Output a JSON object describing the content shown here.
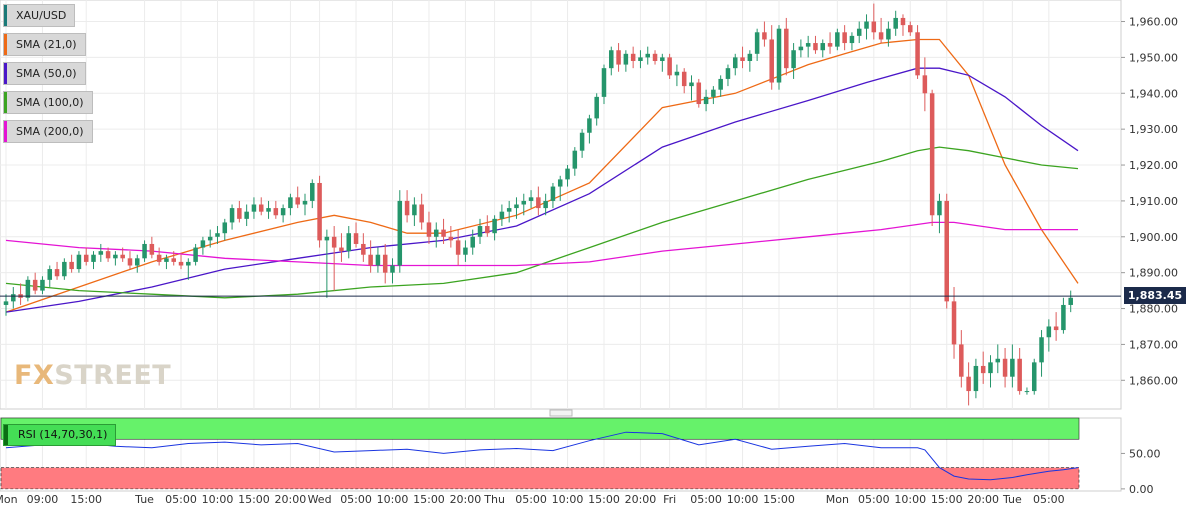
{
  "chart_data": {
    "type": "candlestick",
    "symbol": "XAU/USD",
    "last_price_label": "1,883.45",
    "last_price": 1883.45,
    "ylim": [
      1852,
      1966
    ],
    "y_ticks": [
      "1,960.00",
      "1,950.00",
      "1,940.00",
      "1,930.00",
      "1,920.00",
      "1,910.00",
      "1,900.00",
      "1,890.00",
      "1,880.00",
      "1,870.00",
      "1,860.00"
    ],
    "y_tick_values": [
      1960,
      1950,
      1940,
      1930,
      1920,
      1910,
      1900,
      1890,
      1880,
      1870,
      1860
    ],
    "x_ticks": [
      "Mon",
      "09:00",
      "15:00",
      "Tue",
      "05:00",
      "10:00",
      "15:00",
      "20:00",
      "Wed",
      "05:00",
      "10:00",
      "15:00",
      "20:00",
      "Thu",
      "05:00",
      "10:00",
      "15:00",
      "20:00",
      "Fri",
      "05:00",
      "10:00",
      "15:00",
      "Mon",
      "05:00",
      "10:00",
      "15:00",
      "20:00",
      "Tue",
      "05:00"
    ],
    "x_tick_index": [
      0,
      5,
      11,
      19,
      24,
      29,
      34,
      39,
      43,
      48,
      53,
      58,
      63,
      67,
      72,
      77,
      82,
      87,
      91,
      96,
      101,
      106,
      114,
      119,
      124,
      129,
      134,
      138,
      143
    ],
    "bar_count": 148,
    "ohlc": [
      [
        1881,
        1884,
        1878,
        1882
      ],
      [
        1882,
        1886,
        1880,
        1884
      ],
      [
        1884,
        1887,
        1881,
        1883
      ],
      [
        1883,
        1889,
        1882,
        1888
      ],
      [
        1888,
        1890,
        1884,
        1885
      ],
      [
        1885,
        1889,
        1884,
        1888
      ],
      [
        1888,
        1892,
        1886,
        1891
      ],
      [
        1891,
        1893,
        1888,
        1889
      ],
      [
        1889,
        1894,
        1888,
        1893
      ],
      [
        1893,
        1895,
        1890,
        1891
      ],
      [
        1891,
        1896,
        1890,
        1895
      ],
      [
        1895,
        1897,
        1892,
        1893
      ],
      [
        1893,
        1896,
        1891,
        1895
      ],
      [
        1895,
        1898,
        1893,
        1896
      ],
      [
        1896,
        1897,
        1893,
        1894
      ],
      [
        1894,
        1896,
        1892,
        1895
      ],
      [
        1895,
        1897,
        1893,
        1894
      ],
      [
        1894,
        1896,
        1891,
        1892
      ],
      [
        1892,
        1895,
        1890,
        1894
      ],
      [
        1894,
        1899,
        1893,
        1898
      ],
      [
        1898,
        1900,
        1894,
        1895
      ],
      [
        1895,
        1897,
        1892,
        1893
      ],
      [
        1893,
        1895,
        1891,
        1894
      ],
      [
        1894,
        1896,
        1892,
        1893
      ],
      [
        1893,
        1895,
        1891,
        1892
      ],
      [
        1892,
        1894,
        1888,
        1893
      ],
      [
        1893,
        1898,
        1892,
        1897
      ],
      [
        1897,
        1900,
        1895,
        1899
      ],
      [
        1899,
        1902,
        1897,
        1900
      ],
      [
        1900,
        1903,
        1898,
        1901
      ],
      [
        1901,
        1905,
        1899,
        1904
      ],
      [
        1904,
        1909,
        1902,
        1908
      ],
      [
        1908,
        1910,
        1904,
        1905
      ],
      [
        1905,
        1909,
        1903,
        1907
      ],
      [
        1907,
        1911,
        1905,
        1909
      ],
      [
        1909,
        1911,
        1906,
        1907
      ],
      [
        1907,
        1910,
        1905,
        1908
      ],
      [
        1908,
        1910,
        1905,
        1906
      ],
      [
        1906,
        1909,
        1904,
        1908
      ],
      [
        1908,
        1912,
        1906,
        1911
      ],
      [
        1911,
        1914,
        1908,
        1909
      ],
      [
        1909,
        1912,
        1906,
        1910
      ],
      [
        1910,
        1916,
        1908,
        1915
      ],
      [
        1915,
        1917,
        1897,
        1899
      ],
      [
        1899,
        1902,
        1883,
        1900
      ],
      [
        1900,
        1903,
        1885,
        1897
      ],
      [
        1897,
        1901,
        1893,
        1896
      ],
      [
        1896,
        1903,
        1894,
        1901
      ],
      [
        1901,
        1904,
        1897,
        1898
      ],
      [
        1898,
        1901,
        1893,
        1895
      ],
      [
        1895,
        1899,
        1890,
        1892
      ],
      [
        1892,
        1897,
        1890,
        1895
      ],
      [
        1895,
        1898,
        1887,
        1890
      ],
      [
        1890,
        1894,
        1887,
        1892
      ],
      [
        1892,
        1913,
        1890,
        1910
      ],
      [
        1910,
        1913,
        1904,
        1906
      ],
      [
        1906,
        1911,
        1903,
        1909
      ],
      [
        1909,
        1912,
        1902,
        1904
      ],
      [
        1904,
        1907,
        1898,
        1900
      ],
      [
        1900,
        1904,
        1897,
        1902
      ],
      [
        1902,
        1905,
        1898,
        1900
      ],
      [
        1900,
        1903,
        1897,
        1899
      ],
      [
        1899,
        1902,
        1892,
        1895
      ],
      [
        1895,
        1899,
        1893,
        1897
      ],
      [
        1897,
        1902,
        1895,
        1900
      ],
      [
        1900,
        1905,
        1898,
        1903
      ],
      [
        1903,
        1906,
        1900,
        1901
      ],
      [
        1901,
        1906,
        1899,
        1905
      ],
      [
        1905,
        1909,
        1903,
        1907
      ],
      [
        1907,
        1910,
        1904,
        1908
      ],
      [
        1908,
        1911,
        1905,
        1909
      ],
      [
        1909,
        1912,
        1906,
        1910
      ],
      [
        1910,
        1913,
        1908,
        1911
      ],
      [
        1911,
        1914,
        1906,
        1908
      ],
      [
        1908,
        1912,
        1906,
        1910
      ],
      [
        1910,
        1915,
        1908,
        1914
      ],
      [
        1914,
        1917,
        1910,
        1916
      ],
      [
        1916,
        1920,
        1914,
        1919
      ],
      [
        1919,
        1925,
        1917,
        1924
      ],
      [
        1924,
        1930,
        1922,
        1929
      ],
      [
        1929,
        1934,
        1926,
        1933
      ],
      [
        1933,
        1940,
        1931,
        1939
      ],
      [
        1939,
        1948,
        1937,
        1947
      ],
      [
        1947,
        1953,
        1945,
        1952
      ],
      [
        1952,
        1954,
        1946,
        1948
      ],
      [
        1948,
        1952,
        1946,
        1951
      ],
      [
        1951,
        1953,
        1947,
        1949
      ],
      [
        1949,
        1952,
        1947,
        1950
      ],
      [
        1950,
        1953,
        1948,
        1951
      ],
      [
        1951,
        1952,
        1948,
        1949
      ],
      [
        1949,
        1951,
        1946,
        1950
      ],
      [
        1950,
        1951,
        1944,
        1945
      ],
      [
        1945,
        1948,
        1942,
        1946
      ],
      [
        1946,
        1947,
        1940,
        1942
      ],
      [
        1942,
        1945,
        1938,
        1943
      ],
      [
        1943,
        1944,
        1936,
        1937
      ],
      [
        1937,
        1941,
        1935,
        1939
      ],
      [
        1939,
        1942,
        1937,
        1941
      ],
      [
        1941,
        1945,
        1939,
        1944
      ],
      [
        1944,
        1948,
        1942,
        1947
      ],
      [
        1947,
        1951,
        1945,
        1950
      ],
      [
        1950,
        1953,
        1947,
        1949
      ],
      [
        1949,
        1952,
        1946,
        1951
      ],
      [
        1951,
        1958,
        1949,
        1957
      ],
      [
        1957,
        1960,
        1953,
        1955
      ],
      [
        1955,
        1959,
        1941,
        1943
      ],
      [
        1943,
        1959,
        1941,
        1958
      ],
      [
        1958,
        1961,
        1945,
        1947
      ],
      [
        1947,
        1954,
        1944,
        1952
      ],
      [
        1952,
        1955,
        1950,
        1953
      ],
      [
        1953,
        1956,
        1950,
        1954
      ],
      [
        1954,
        1956,
        1951,
        1952
      ],
      [
        1952,
        1955,
        1950,
        1954
      ],
      [
        1954,
        1957,
        1951,
        1953
      ],
      [
        1953,
        1958,
        1952,
        1957
      ],
      [
        1957,
        1959,
        1952,
        1954
      ],
      [
        1954,
        1957,
        1952,
        1956
      ],
      [
        1956,
        1960,
        1954,
        1958
      ],
      [
        1958,
        1962,
        1955,
        1960
      ],
      [
        1960,
        1965,
        1955,
        1957
      ],
      [
        1957,
        1961,
        1954,
        1955
      ],
      [
        1955,
        1960,
        1953,
        1958
      ],
      [
        1958,
        1963,
        1956,
        1961
      ],
      [
        1961,
        1962,
        1956,
        1959
      ],
      [
        1959,
        1960,
        1956,
        1957
      ],
      [
        1957,
        1959,
        1944,
        1945
      ],
      [
        1945,
        1950,
        1935,
        1940
      ],
      [
        1940,
        1941,
        1903,
        1906
      ],
      [
        1906,
        1912,
        1901,
        1910
      ],
      [
        1910,
        1912,
        1880,
        1882
      ],
      [
        1882,
        1886,
        1866,
        1870
      ],
      [
        1870,
        1874,
        1858,
        1861
      ],
      [
        1861,
        1865,
        1853,
        1857
      ],
      [
        1857,
        1866,
        1855,
        1864
      ],
      [
        1864,
        1868,
        1859,
        1862
      ],
      [
        1862,
        1867,
        1858,
        1865
      ],
      [
        1865,
        1870,
        1862,
        1866
      ],
      [
        1866,
        1869,
        1858,
        1861
      ],
      [
        1861,
        1870,
        1858,
        1866
      ],
      [
        1866,
        1869,
        1856,
        1857
      ],
      [
        1857,
        1858,
        1856,
        1857
      ],
      [
        1857,
        1866,
        1856,
        1865
      ],
      [
        1865,
        1874,
        1861,
        1872
      ],
      [
        1872,
        1877,
        1868,
        1875
      ],
      [
        1875,
        1879,
        1871,
        1874
      ],
      [
        1874,
        1883,
        1873,
        1881
      ],
      [
        1881,
        1885,
        1879,
        1883
      ]
    ],
    "series": [
      {
        "name": "SMA (21,0)",
        "color": "#ee6a16",
        "x": [
          0,
          10,
          20,
          30,
          40,
          45,
          50,
          55,
          60,
          70,
          80,
          90,
          100,
          110,
          115,
          120,
          125,
          128,
          132,
          137,
          142,
          147
        ],
        "y": [
          1879,
          1886,
          1893,
          1899,
          1904,
          1906,
          1904,
          1901,
          1901,
          1906,
          1915,
          1936,
          1940,
          1948,
          1951,
          1954,
          1955,
          1955,
          1945,
          1920,
          1902,
          1887
        ]
      },
      {
        "name": "SMA (50,0)",
        "color": "#4a16c8",
        "x": [
          0,
          10,
          20,
          30,
          40,
          50,
          60,
          70,
          80,
          90,
          100,
          110,
          118,
          125,
          128,
          132,
          137,
          142,
          147
        ],
        "y": [
          1879,
          1882,
          1886,
          1891,
          1894,
          1897,
          1899,
          1903,
          1912,
          1925,
          1932,
          1938,
          1943,
          1947,
          1947,
          1945,
          1939,
          1931,
          1924
        ]
      },
      {
        "name": "SMA (100,0)",
        "color": "#3ca421",
        "x": [
          0,
          10,
          20,
          30,
          40,
          50,
          60,
          70,
          80,
          90,
          100,
          110,
          120,
          125,
          128,
          132,
          137,
          142,
          147
        ],
        "y": [
          1887,
          1885,
          1884,
          1883,
          1884,
          1886,
          1887,
          1890,
          1897,
          1904,
          1910,
          1916,
          1921,
          1924,
          1925,
          1924,
          1922,
          1920,
          1919
        ]
      },
      {
        "name": "SMA (200,0)",
        "color": "#e414d4",
        "x": [
          0,
          10,
          20,
          30,
          40,
          50,
          60,
          70,
          80,
          90,
          100,
          110,
          120,
          127,
          130,
          137,
          142,
          147
        ],
        "y": [
          1899,
          1897,
          1896,
          1894,
          1893,
          1892,
          1892,
          1892,
          1893,
          1896,
          1898,
          1900,
          1902,
          1904,
          1904,
          1902,
          1902,
          1902
        ]
      }
    ],
    "rsi": {
      "label": "RSI (14,70,30,1)",
      "y_ticks": [
        "50.00",
        "0.00"
      ],
      "y_tick_values": [
        50,
        0
      ],
      "ylim": [
        -3,
        100
      ],
      "upper_zone": [
        70,
        100
      ],
      "lower_zone": [
        0,
        30
      ],
      "color": "#1a35e0",
      "x": [
        0,
        5,
        10,
        15,
        20,
        25,
        30,
        35,
        40,
        45,
        50,
        55,
        60,
        65,
        70,
        75,
        80,
        85,
        90,
        95,
        100,
        105,
        110,
        115,
        120,
        125,
        126,
        128,
        130,
        132,
        135,
        138,
        140,
        143,
        145,
        147
      ],
      "y": [
        58,
        62,
        65,
        60,
        58,
        64,
        66,
        62,
        64,
        52,
        54,
        56,
        50,
        55,
        57,
        54,
        68,
        80,
        78,
        62,
        70,
        56,
        60,
        64,
        58,
        58,
        55,
        30,
        18,
        14,
        13,
        16,
        20,
        25,
        27,
        30
      ]
    }
  },
  "colors": {
    "up": "#25956b",
    "down": "#dd5b5b",
    "last_line": "#1b2a4a",
    "background": "#ffffff",
    "grid": "#ececec"
  },
  "legend": [
    {
      "label": "XAU/USD",
      "color": "#1a7a78"
    },
    {
      "label": "SMA (21,0)",
      "color": "#ee6a16"
    },
    {
      "label": "SMA (50,0)",
      "color": "#4a16c8"
    },
    {
      "label": "SMA (100,0)",
      "color": "#3ca421"
    },
    {
      "label": "SMA (200,0)",
      "color": "#e414d4"
    }
  ],
  "logo": {
    "part1": "FX",
    "part2": "STREET"
  }
}
